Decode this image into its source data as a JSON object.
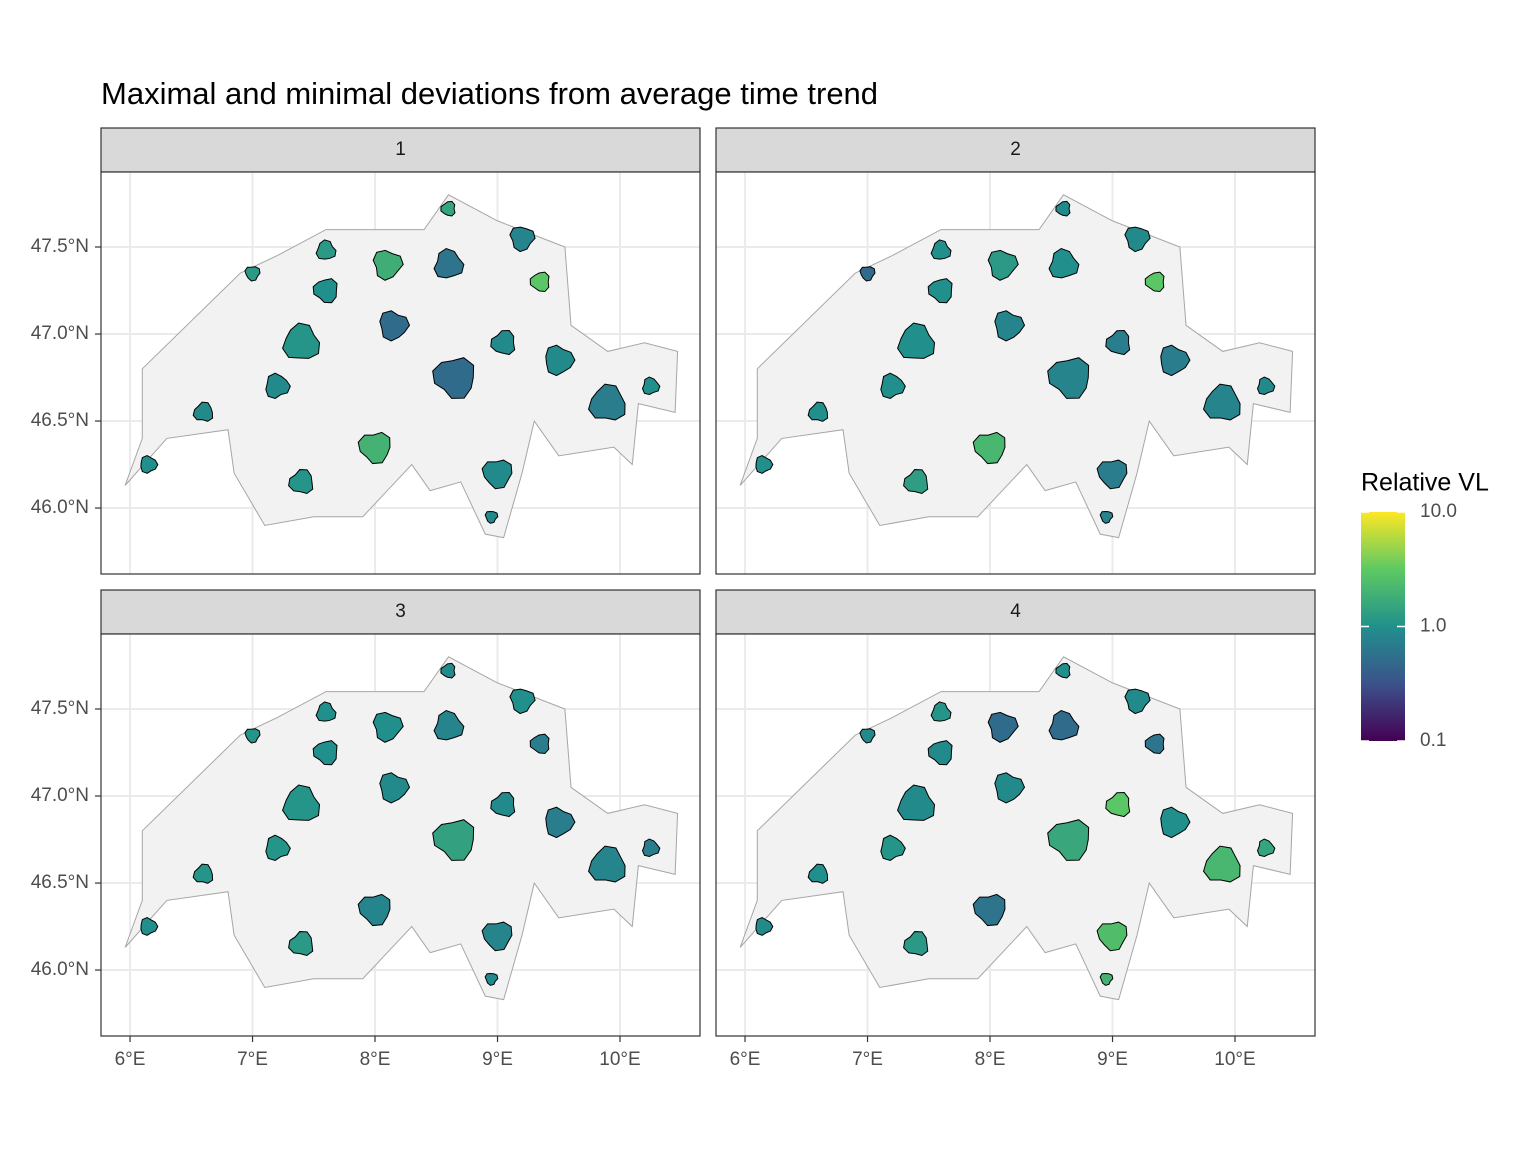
{
  "chart_data": {
    "type": "map",
    "title": "Maximal and minimal deviations from average time trend",
    "facets": [
      {
        "label": "1",
        "values": [
          1.5,
          0.6,
          0.8,
          3,
          1.2,
          1.8,
          1,
          1.1,
          0.5,
          0.5,
          0.7,
          0.9,
          2,
          0.9,
          1,
          0.9,
          1.1,
          0.9,
          1.2,
          0.9,
          1,
          0.9
        ]
      },
      {
        "label": "2",
        "values": [
          0.9,
          1,
          0.9,
          3,
          1,
          1.2,
          1,
          1,
          0.8,
          0.8,
          0.8,
          0.7,
          2.2,
          1,
          1,
          0.7,
          1.3,
          1,
          0.5,
          0.7,
          0.9,
          0.8
        ]
      },
      {
        "label": "3",
        "values": [
          0.9,
          0.8,
          1,
          0.7,
          1,
          1,
          1,
          1.1,
          0.9,
          1.4,
          0.8,
          0.7,
          0.8,
          1.1,
          1,
          0.8,
          1.2,
          1.1,
          1.1,
          0.9,
          0.7,
          0.9
        ]
      },
      {
        "label": "4",
        "values": [
          1,
          0.5,
          0.9,
          0.6,
          1.1,
          0.5,
          0.9,
          0.9,
          0.9,
          1.6,
          2.2,
          1,
          0.6,
          1,
          0.9,
          2.5,
          1.2,
          1.1,
          0.9,
          3,
          1.5,
          2
        ]
      }
    ],
    "xlim": [
      5.763,
      10.653
    ],
    "ylim": [
      45.621,
      47.931
    ],
    "xticks": [
      {
        "value": 6,
        "label": "6°E"
      },
      {
        "value": 7,
        "label": "7°E"
      },
      {
        "value": 8,
        "label": "8°E"
      },
      {
        "value": 9,
        "label": "9°E"
      },
      {
        "value": 10,
        "label": "10°E"
      }
    ],
    "yticks": [
      {
        "value": 46,
        "label": "46.0°N"
      },
      {
        "value": 46.5,
        "label": "46.5°N"
      },
      {
        "value": 47,
        "label": "47.0°N"
      },
      {
        "value": 47.5,
        "label": "47.5°N"
      }
    ],
    "legend_title": "Relative VL",
    "color_lim": [
      0.1,
      10
    ],
    "color_scale": "log",
    "colormap": "viridis",
    "color_ticks": [
      {
        "value": 0.1,
        "label": "0.1"
      },
      {
        "value": 1,
        "label": "1.0"
      },
      {
        "value": 10,
        "label": "10.0"
      }
    ]
  }
}
